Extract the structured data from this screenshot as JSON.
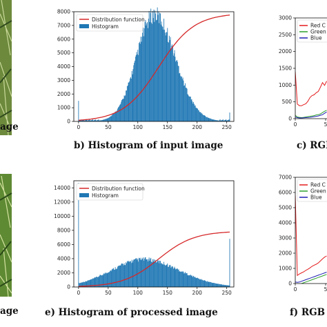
{
  "captions": {
    "left_top": "age",
    "left_bottom": "age",
    "b": "b) Histogram of input image",
    "c": "c) RGB",
    "e": "e) Histogram of processed image",
    "f": "f) RGB"
  },
  "rgb_legend": {
    "top": [
      "Red C",
      "Green",
      "Blue"
    ],
    "bottom": [
      "Red C",
      "Green",
      "Blue"
    ]
  },
  "colors": {
    "bar": "#1f77b4",
    "cdf": "#d62728",
    "red": "#e41a1c",
    "green": "#2ca02c",
    "blue": "#1f1fb4"
  },
  "chart_data": [
    {
      "id": "input-histogram",
      "type": "bar",
      "xlim": [
        -8,
        262
      ],
      "ylim": [
        0,
        8000
      ],
      "xticks": [
        "0",
        "50",
        "100",
        "150",
        "200",
        "250"
      ],
      "yticks": [
        "0",
        "1000",
        "2000",
        "3000",
        "4000",
        "5000",
        "6000",
        "7000",
        "8000"
      ],
      "legend": [
        "Distribution function",
        "Histogram"
      ],
      "histogram_profile": {
        "center": 128,
        "peak": 7800,
        "spread_left": 30,
        "spread_right": 35,
        "edge_spike_0": 1500,
        "edge_spike_255": 650
      },
      "cdf": {
        "start": 0,
        "end": 7900,
        "midpoint": 135,
        "scale": 30
      }
    },
    {
      "id": "processed-histogram",
      "type": "bar",
      "xlim": [
        -8,
        262
      ],
      "ylim": [
        0,
        15000
      ],
      "xticks": [
        "0",
        "50",
        "100",
        "150",
        "200",
        "250"
      ],
      "yticks": [
        "0",
        "2000",
        "4000",
        "6000",
        "8000",
        "10000",
        "12000",
        "14000"
      ],
      "legend": [
        "Distribution function",
        "Histogram"
      ],
      "histogram_profile": {
        "center": 110,
        "peak": 3900,
        "spread_left": 55,
        "spread_right": 60,
        "edge_spike_0": 14700,
        "edge_spike_255": 6800
      },
      "cdf": {
        "start": 0,
        "end": 7900,
        "midpoint": 135,
        "scale": 30
      }
    },
    {
      "id": "rgb-top",
      "type": "line",
      "ylim": [
        0,
        3000
      ],
      "yticks": [
        "0",
        "500",
        "1000",
        "1500",
        "2000",
        "2500",
        "3000"
      ],
      "xticks": [
        "0",
        "5"
      ],
      "series": [
        {
          "name": "Red C",
          "values": [
            1400,
            400,
            350,
            380,
            450,
            480,
            520,
            600,
            650,
            700,
            800,
            850,
            950,
            1050,
            950,
            1100
          ]
        },
        {
          "name": "Green",
          "values": [
            100,
            50,
            40,
            30,
            40,
            50,
            60,
            70,
            80,
            90,
            110,
            120,
            140,
            180,
            220,
            250
          ]
        },
        {
          "name": "Blue",
          "values": [
            50,
            30,
            20,
            20,
            25,
            30,
            35,
            40,
            50,
            60,
            70,
            80,
            100,
            120,
            160,
            200
          ]
        }
      ]
    },
    {
      "id": "rgb-bottom",
      "type": "line",
      "ylim": [
        0,
        7000
      ],
      "yticks": [
        "0",
        "1000",
        "2000",
        "3000",
        "4000",
        "5000",
        "6000",
        "7000"
      ],
      "xticks": [
        "0",
        "5"
      ],
      "series": [
        {
          "name": "Red C",
          "values": [
            5800,
            500,
            600,
            700,
            800,
            900,
            950,
            1000,
            1100,
            1200,
            1300,
            1400,
            1500,
            1600,
            1700,
            1800
          ]
        },
        {
          "name": "Green",
          "values": [
            -200,
            -100,
            -50,
            0,
            50,
            100,
            150,
            200,
            250,
            300,
            350,
            400,
            450,
            500,
            550,
            600
          ]
        },
        {
          "name": "Blue",
          "values": [
            100,
            80,
            100,
            150,
            200,
            250,
            300,
            350,
            400,
            450,
            500,
            550,
            600,
            650,
            700,
            750
          ]
        }
      ]
    }
  ]
}
